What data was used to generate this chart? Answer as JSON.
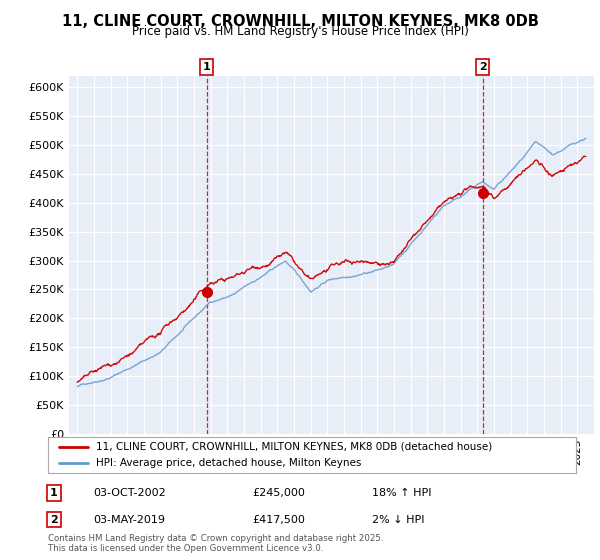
{
  "title_line1": "11, CLINE COURT, CROWNHILL, MILTON KEYNES, MK8 0DB",
  "title_line2": "Price paid vs. HM Land Registry's House Price Index (HPI)",
  "ylim": [
    0,
    620000
  ],
  "yticks": [
    0,
    50000,
    100000,
    150000,
    200000,
    250000,
    300000,
    350000,
    400000,
    450000,
    500000,
    550000,
    600000
  ],
  "ytick_labels": [
    "£0",
    "£50K",
    "£100K",
    "£150K",
    "£200K",
    "£250K",
    "£300K",
    "£350K",
    "£400K",
    "£450K",
    "£500K",
    "£550K",
    "£600K"
  ],
  "marker1_date": 2002.75,
  "marker1_value": 245000,
  "marker1_label": "1",
  "marker2_date": 2019.33,
  "marker2_value": 417500,
  "marker2_label": "2",
  "legend_line1": "11, CLINE COURT, CROWNHILL, MILTON KEYNES, MK8 0DB (detached house)",
  "legend_line2": "HPI: Average price, detached house, Milton Keynes",
  "footer": "Contains HM Land Registry data © Crown copyright and database right 2025.\nThis data is licensed under the Open Government Licence v3.0.",
  "line_color_red": "#cc0000",
  "line_color_blue": "#6699cc",
  "background_color": "#e8eef8",
  "xlim_left": 1994.5,
  "xlim_right": 2026.0
}
